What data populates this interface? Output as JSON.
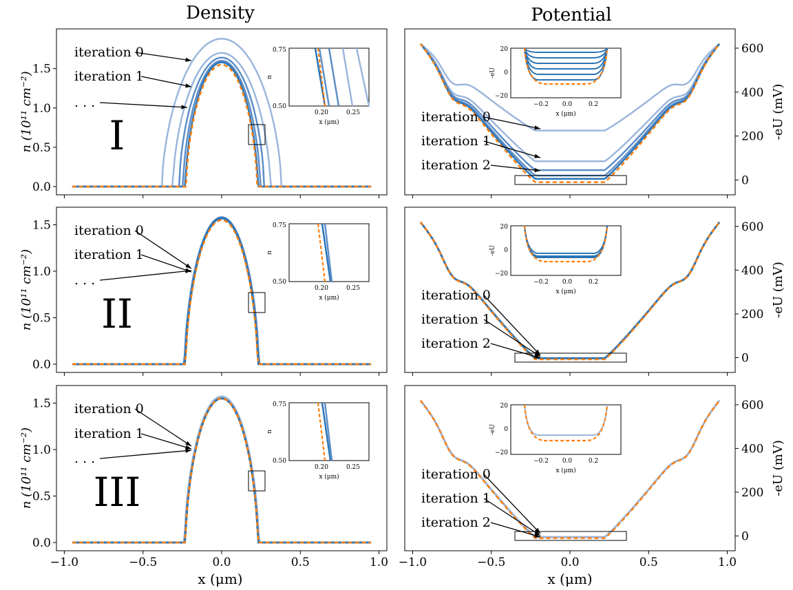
{
  "figure": {
    "col_titles": [
      "Density",
      "Potential"
    ],
    "row_labels": [
      "I",
      "II",
      "III"
    ],
    "x_tick_labels": [
      "−1.0",
      "−0.5",
      "0.0",
      "0.5",
      "1.0"
    ],
    "xlabel": "x (μm)",
    "density_ylabel": "n (10¹¹ cm⁻²)",
    "potential_ylabel": "-eU (mV)",
    "density_ticks_row1": [
      "0.0",
      "0.5",
      "1.0",
      "1.5"
    ],
    "density_ticks": [
      "0.0",
      "0.5",
      "1.0",
      "1.5"
    ],
    "potential_ticks": [
      "0",
      "200",
      "400",
      "600"
    ],
    "density_annotations": [
      "iteration 0",
      "iteration 1",
      ". . ."
    ],
    "potential_annotations": [
      "iteration 0",
      "iteration 1",
      "iteration 2"
    ],
    "inset_density": {
      "xticks": [
        "0.20",
        "0.25"
      ],
      "yticks": [
        "0.50",
        "0.75"
      ],
      "xlabel": "x (μm)",
      "ylabel": "n"
    },
    "inset_potential": {
      "xticks": [
        "−0.2",
        "0.0",
        "0.2"
      ],
      "yticks": [
        "20",
        "0",
        "−20"
      ],
      "xlabel": "x (μm)",
      "ylabel": "-eU"
    }
  },
  "chart_data": [
    {
      "type": "line",
      "panel": "I-density",
      "x_range": [
        -0.95,
        0.95
      ],
      "ylim": [
        0,
        1.9
      ],
      "series": [
        {
          "center_peak": 1.88,
          "half_width": 0.38
        },
        {
          "center_peak": 1.7,
          "half_width": 0.3
        },
        {
          "center_peak": 1.64,
          "half_width": 0.26
        },
        {
          "center_peak": 1.6,
          "half_width": 0.24
        },
        {
          "center_peak": 1.55,
          "half_width": 0.23,
          "style": "dashed-orange"
        }
      ]
    },
    {
      "type": "line",
      "panel": "I-potential",
      "ylim": [
        -30,
        650
      ],
      "series": [
        {
          "floor": 225
        },
        {
          "floor": 85
        },
        {
          "floor": 45
        },
        {
          "floor": 20
        },
        {
          "floor": -10,
          "style": "dashed-orange"
        }
      ]
    },
    {
      "type": "line",
      "panel": "II-density",
      "ylim": [
        0,
        1.6
      ],
      "peak": 1.57,
      "half_width": 0.23
    },
    {
      "type": "line",
      "panel": "II-potential",
      "ylim": [
        -30,
        650
      ],
      "floor": -5
    },
    {
      "type": "line",
      "panel": "III-density",
      "ylim": [
        0,
        1.6
      ],
      "peak": 1.56,
      "half_width": 0.23
    },
    {
      "type": "line",
      "panel": "III-potential",
      "ylim": [
        -30,
        650
      ],
      "floor": -8
    }
  ],
  "colors": {
    "blue_dark": "#2a74b5",
    "blue_mid": "#5d8ec8",
    "blue_light": "#9cb6dc",
    "orange": "#ff7f0e"
  }
}
